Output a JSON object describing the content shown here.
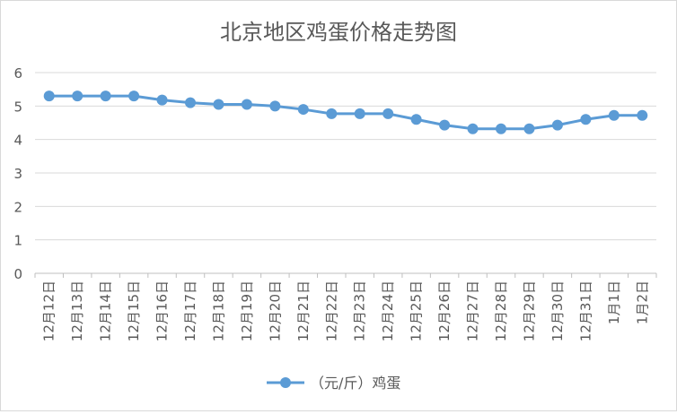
{
  "chart_data": {
    "type": "line",
    "title": "北京地区鸡蛋价格走势图",
    "xlabel": "",
    "ylabel": "",
    "ylim": [
      0,
      6
    ],
    "yticks": [
      "0",
      "1",
      "2",
      "3",
      "4",
      "5",
      "6"
    ],
    "grid": true,
    "legend_position": "bottom",
    "categories": [
      "12月12日",
      "12月13日",
      "12月14日",
      "12月15日",
      "12月16日",
      "12月17日",
      "12月18日",
      "12月19日",
      "12月20日",
      "12月21日",
      "12月22日",
      "12月23日",
      "12月24日",
      "12月25日",
      "12月26日",
      "12月27日",
      "12月28日",
      "12月29日",
      "12月30日",
      "12月31日",
      "1月1日",
      "1月2日"
    ],
    "series": [
      {
        "name": "（元/斤）鸡蛋",
        "color": "#5b9bd5",
        "values": [
          5.3,
          5.3,
          5.3,
          5.3,
          5.18,
          5.1,
          5.05,
          5.05,
          5.0,
          4.9,
          4.77,
          4.77,
          4.77,
          4.6,
          4.43,
          4.32,
          4.32,
          4.32,
          4.43,
          4.6,
          4.72,
          4.72
        ]
      }
    ]
  }
}
